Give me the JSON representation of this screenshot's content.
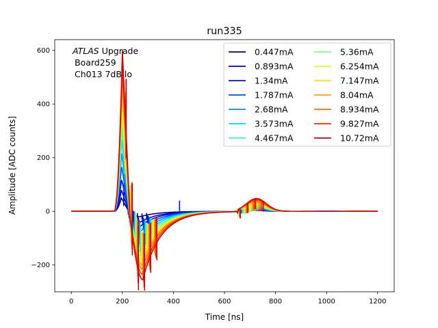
{
  "chart_data": {
    "type": "line",
    "title": "run335",
    "xlabel": "Time [ns]",
    "ylabel": "Amplitude [ADC counts]",
    "xlim": [
      -65,
      1265
    ],
    "ylim": [
      -300,
      640
    ],
    "xticks": [
      0,
      200,
      400,
      600,
      800,
      1000,
      1200
    ],
    "yticks": [
      -200,
      0,
      200,
      400,
      600
    ],
    "xtick_labels": [
      "0",
      "200",
      "400",
      "600",
      "800",
      "1000",
      "1200"
    ],
    "ytick_labels": [
      "−200",
      "0",
      "200",
      "400",
      "600"
    ],
    "annotation": {
      "italic": "ATLAS",
      "rest": " Upgrade",
      "line2": "Board259",
      "line3": "Ch013 7dB lo"
    },
    "legend_location": "top-right",
    "legend_columns": 2,
    "series": [
      {
        "name": "0.447mA",
        "color": "#00007f",
        "peak": 50,
        "trough": -20,
        "bump": 4,
        "spike_x": 0,
        "spike_h": 0
      },
      {
        "name": "0.893mA",
        "color": "#0000d4",
        "peak": 80,
        "trough": -40,
        "bump": 6,
        "spike_x": 0,
        "spike_h": 0
      },
      {
        "name": "1.34mA",
        "color": "#0008ff",
        "peak": 120,
        "trough": -55,
        "bump": 8,
        "spike_x": 424,
        "spike_h": 40
      },
      {
        "name": "1.787mA",
        "color": "#004cff",
        "peak": 170,
        "trough": -75,
        "bump": 10,
        "spike_x": 0,
        "spike_h": 0
      },
      {
        "name": "2.68mA",
        "color": "#0090ff",
        "peak": 220,
        "trough": -95,
        "bump": 14,
        "spike_x": 0,
        "spike_h": 0
      },
      {
        "name": "3.573mA",
        "color": "#00d4ff",
        "peak": 270,
        "trough": -115,
        "bump": 17,
        "spike_x": 0,
        "spike_h": 0
      },
      {
        "name": "4.467mA",
        "color": "#29ffce",
        "peak": 310,
        "trough": -135,
        "bump": 21,
        "spike_x": 0,
        "spike_h": 0
      },
      {
        "name": "5.36mA",
        "color": "#7dff7a",
        "peak": 350,
        "trough": -155,
        "bump": 25,
        "spike_x": 0,
        "spike_h": 0
      },
      {
        "name": "6.254mA",
        "color": "#ceff29",
        "peak": 390,
        "trough": -170,
        "bump": 28,
        "spike_x": 0,
        "spike_h": 0
      },
      {
        "name": "7.147mA",
        "color": "#ffe600",
        "peak": 430,
        "trough": -185,
        "bump": 32,
        "spike_x": 0,
        "spike_h": 0
      },
      {
        "name": "8.04mA",
        "color": "#ffa400",
        "peak": 470,
        "trough": -200,
        "bump": 36,
        "spike_x": 0,
        "spike_h": 0
      },
      {
        "name": "8.934mA",
        "color": "#ff6800",
        "peak": 510,
        "trough": -215,
        "bump": 40,
        "spike_x": 0,
        "spike_h": 0
      },
      {
        "name": "9.827mA",
        "color": "#ff2900",
        "peak": 555,
        "trough": -235,
        "bump": 44,
        "spike_x": 0,
        "spike_h": 0
      },
      {
        "name": "10.72mA",
        "color": "#d40000",
        "peak": 600,
        "trough": -255,
        "bump": 48,
        "spike_x": 0,
        "spike_h": 0
      }
    ]
  }
}
